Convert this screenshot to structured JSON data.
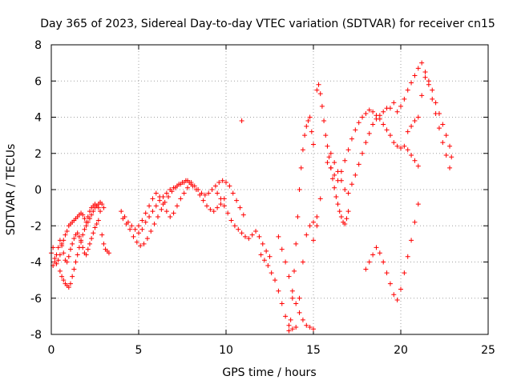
{
  "chart_data": {
    "type": "scatter",
    "title": "Day 365 of 2023, Sidereal Day-to-day VTEC variation (SDTVAR) for receiver cn15",
    "xlabel": "GPS time / hours",
    "ylabel": "SDTVAR / TECUs",
    "xlim": [
      0,
      25
    ],
    "ylim": [
      -8,
      8
    ],
    "xticks": [
      "0",
      "5",
      "10",
      "15",
      "20",
      "25"
    ],
    "yticks": [
      "-8",
      "-6",
      "-4",
      "-2",
      "0",
      "2",
      "4",
      "6",
      "8"
    ],
    "grid": true,
    "marker": "+",
    "color": "#ff0000",
    "series": [
      {
        "x": [
          0.0,
          0.1,
          0.2,
          0.3,
          0.4,
          0.5,
          0.6,
          0.7,
          0.8,
          0.9,
          1.0,
          1.1,
          1.2,
          1.3,
          1.4,
          1.5,
          1.6,
          1.7,
          1.8,
          1.9,
          2.0,
          2.1,
          2.2,
          2.3,
          2.4,
          2.5,
          2.6,
          2.7,
          2.8,
          2.9,
          3.0,
          3.1,
          3.2,
          3.3,
          0.1,
          0.2,
          0.3,
          0.4,
          0.5,
          0.6,
          0.7,
          0.8,
          0.9,
          1.0,
          1.1,
          1.2,
          1.3,
          1.4,
          1.5,
          1.6,
          1.7,
          1.8,
          1.9,
          2.0,
          2.1,
          2.2,
          2.3,
          2.4,
          2.5,
          2.6,
          2.7,
          0.5,
          0.6,
          0.7,
          0.8,
          0.9,
          1.0,
          1.1,
          1.2,
          1.3,
          1.4,
          1.5,
          1.6,
          1.7,
          1.8,
          1.9,
          2.0,
          2.1,
          2.2,
          2.3,
          2.4,
          2.5,
          2.6,
          2.7,
          2.8,
          2.9,
          3.0,
          4.0,
          4.2,
          4.4,
          4.6,
          4.8,
          5.0,
          5.2,
          5.4,
          5.6,
          5.8,
          6.0,
          6.2,
          6.4,
          6.6,
          6.8,
          7.0,
          7.2,
          7.4,
          7.6,
          7.8,
          8.0,
          8.2,
          8.4,
          8.6,
          8.8,
          9.0,
          9.2,
          9.4,
          9.6,
          9.8,
          10.0,
          10.2,
          10.4,
          10.6,
          10.8,
          11.0,
          4.1,
          4.3,
          4.5,
          4.7,
          4.9,
          5.1,
          5.3,
          5.5,
          5.7,
          5.9,
          6.1,
          6.3,
          6.5,
          6.7,
          6.9,
          7.1,
          7.3,
          7.5,
          7.7,
          7.9,
          8.1,
          8.3,
          8.5,
          8.7,
          8.9,
          9.1,
          9.3,
          9.5,
          9.7,
          9.9,
          5.0,
          5.2,
          5.4,
          5.6,
          5.8,
          6.0,
          6.2,
          6.4,
          6.6,
          6.8,
          7.0,
          7.2,
          7.4,
          7.6,
          7.8,
          8.0,
          9.5,
          9.7,
          9.9,
          10.1,
          10.3,
          10.5,
          10.7,
          10.9,
          11.1,
          11.3,
          11.5,
          11.7,
          11.9,
          12.1,
          12.3,
          12.5,
          10.9,
          12.0,
          12.2,
          12.4,
          12.6,
          12.8,
          13.0,
          13.2,
          13.4,
          13.6,
          13.8,
          14.0,
          14.2,
          14.4,
          14.6,
          14.8,
          15.0,
          15.2,
          13.0,
          13.2,
          13.4,
          13.6,
          13.8,
          14.0,
          14.2,
          14.4,
          14.6,
          14.8,
          15.0,
          13.6,
          13.7,
          13.8,
          13.9,
          14.0,
          14.1,
          14.2,
          14.3,
          14.4,
          14.5,
          14.6,
          14.7,
          14.8,
          14.9,
          15.0,
          15.2,
          15.3,
          15.4,
          15.5,
          15.6,
          15.7,
          15.8,
          15.9,
          16.0,
          16.1,
          16.2,
          16.3,
          16.4,
          16.5,
          16.6,
          16.7,
          16.8,
          16.9,
          17.0,
          15.8,
          16.0,
          16.2,
          16.4,
          16.6,
          16.8,
          17.0,
          17.2,
          17.4,
          17.6,
          17.8,
          18.0,
          18.2,
          18.4,
          18.6,
          18.8,
          19.0,
          19.2,
          19.4,
          19.6,
          19.8,
          20.0,
          20.2,
          20.4,
          20.6,
          20.8,
          21.0,
          16.0,
          16.2,
          16.4,
          16.6,
          16.8,
          17.0,
          17.2,
          17.4,
          17.6,
          17.8,
          18.0,
          18.2,
          18.4,
          18.6,
          18.8,
          19.0,
          19.2,
          19.4,
          19.6,
          19.8,
          20.0,
          20.2,
          20.4,
          20.6,
          20.8,
          21.0,
          21.2,
          21.4,
          21.6,
          21.8,
          22.0,
          22.2,
          22.4,
          22.6,
          22.8,
          20.4,
          20.6,
          20.8,
          21.0,
          21.2,
          21.4,
          21.6,
          21.8,
          22.0,
          22.2,
          22.4,
          22.6,
          22.8,
          22.9,
          18.0,
          18.2,
          18.4,
          18.6,
          18.8,
          19.0,
          19.2,
          19.4,
          19.6,
          19.8,
          20.0,
          20.2,
          20.4,
          20.6,
          20.8,
          21.0,
          15.0,
          15.2,
          15.4
        ],
        "y": [
          -3.5,
          -3.2,
          -3.8,
          -4.1,
          -3.9,
          -3.6,
          -3.0,
          -2.8,
          -2.5,
          -2.3,
          -2.0,
          -1.9,
          -1.8,
          -1.7,
          -1.6,
          -1.5,
          -1.4,
          -1.3,
          -1.4,
          -1.6,
          -1.8,
          -1.5,
          -1.2,
          -1.0,
          -0.9,
          -0.8,
          -0.9,
          -1.0,
          -1.2,
          -2.5,
          -3.0,
          -3.3,
          -3.4,
          -3.5,
          -4.2,
          -4.0,
          -3.6,
          -3.2,
          -2.8,
          -3.1,
          -3.5,
          -3.9,
          -4.0,
          -3.7,
          -3.3,
          -3.0,
          -2.7,
          -2.5,
          -2.4,
          -2.6,
          -2.9,
          -3.2,
          -3.5,
          -3.6,
          -3.3,
          -3.0,
          -2.7,
          -2.4,
          -2.1,
          -1.9,
          -1.7,
          -4.5,
          -4.8,
          -5.0,
          -5.2,
          -5.3,
          -5.4,
          -5.2,
          -4.8,
          -4.4,
          -4.0,
          -3.6,
          -3.2,
          -2.8,
          -2.5,
          -2.2,
          -2.0,
          -1.8,
          -1.6,
          -1.4,
          -1.2,
          -1.0,
          -0.9,
          -0.8,
          -0.7,
          -0.8,
          -1.0,
          -1.2,
          -1.5,
          -1.8,
          -2.0,
          -2.2,
          -2.4,
          -2.2,
          -1.8,
          -1.5,
          -1.2,
          -0.9,
          -0.6,
          -0.4,
          -0.2,
          0.0,
          0.1,
          0.2,
          0.3,
          0.4,
          0.5,
          0.4,
          0.2,
          0.0,
          -0.2,
          -0.3,
          -0.2,
          0.0,
          0.2,
          0.4,
          0.5,
          0.4,
          0.2,
          -0.2,
          -0.6,
          -1.0,
          -1.4,
          -1.6,
          -1.9,
          -2.2,
          -2.6,
          -2.9,
          -3.1,
          -3.0,
          -2.7,
          -2.3,
          -1.9,
          -1.5,
          -1.1,
          -0.7,
          -0.4,
          -0.1,
          0.1,
          0.3,
          0.4,
          0.5,
          0.4,
          0.2,
          0.0,
          -0.3,
          -0.6,
          -0.9,
          -1.1,
          -1.2,
          -1.0,
          -0.8,
          -0.5,
          -2.0,
          -1.7,
          -1.3,
          -0.9,
          -0.5,
          -0.2,
          -0.4,
          -0.8,
          -1.2,
          -1.5,
          -1.3,
          -0.9,
          -0.5,
          -0.2,
          0.1,
          0.3,
          -0.2,
          -0.5,
          -0.9,
          -1.3,
          -1.7,
          -2.0,
          -2.2,
          -2.4,
          -2.6,
          -2.7,
          -2.5,
          -2.3,
          -2.6,
          -3.0,
          -3.4,
          -3.7,
          3.8,
          -3.6,
          -3.9,
          -4.2,
          -4.6,
          -5.0,
          -5.6,
          -6.3,
          -7.0,
          -7.5,
          -7.7,
          -7.6,
          -6.0,
          -4.0,
          -2.5,
          -2.0,
          -1.8,
          -2.0,
          -2.6,
          -3.3,
          -4.0,
          -4.8,
          -5.6,
          -6.3,
          -6.8,
          -7.2,
          -7.5,
          -7.6,
          -7.7,
          -7.8,
          -7.2,
          -6.0,
          -4.5,
          -3.0,
          -1.5,
          0.0,
          1.2,
          2.2,
          3.0,
          3.5,
          3.8,
          4.0,
          3.2,
          2.5,
          5.5,
          5.8,
          5.3,
          4.6,
          3.8,
          3.0,
          2.4,
          1.8,
          1.2,
          0.6,
          0.1,
          -0.4,
          -0.8,
          -1.2,
          -1.5,
          -1.8,
          -1.9,
          -1.6,
          -1.2,
          1.5,
          1.2,
          0.8,
          0.5,
          1.0,
          1.6,
          2.2,
          2.8,
          3.3,
          3.7,
          4.0,
          4.2,
          4.4,
          4.3,
          4.1,
          3.9,
          3.6,
          3.3,
          3.0,
          2.6,
          2.4,
          2.3,
          2.4,
          2.2,
          1.9,
          1.6,
          1.3,
          2.0,
          1.5,
          1.0,
          0.5,
          0.0,
          -0.2,
          0.3,
          0.8,
          1.4,
          2.0,
          2.6,
          3.1,
          3.6,
          3.9,
          4.1,
          4.3,
          4.5,
          4.5,
          4.8,
          4.3,
          4.6,
          5.0,
          5.5,
          5.9,
          6.3,
          6.7,
          7.0,
          6.5,
          5.8,
          5.0,
          4.2,
          3.4,
          2.6,
          1.9,
          1.2,
          3.2,
          3.5,
          3.8,
          4.0,
          5.2,
          6.2,
          6.0,
          5.5,
          4.8,
          4.2,
          3.6,
          3.0,
          2.4,
          1.8,
          -4.4,
          -4.0,
          -3.6,
          -3.2,
          -3.5,
          -4.0,
          -4.6,
          -5.2,
          -5.8,
          -6.1,
          -5.5,
          -4.6,
          -3.7,
          -2.8,
          -1.8,
          -0.8,
          -2.8,
          -1.5,
          -0.5
        ]
      }
    ]
  }
}
